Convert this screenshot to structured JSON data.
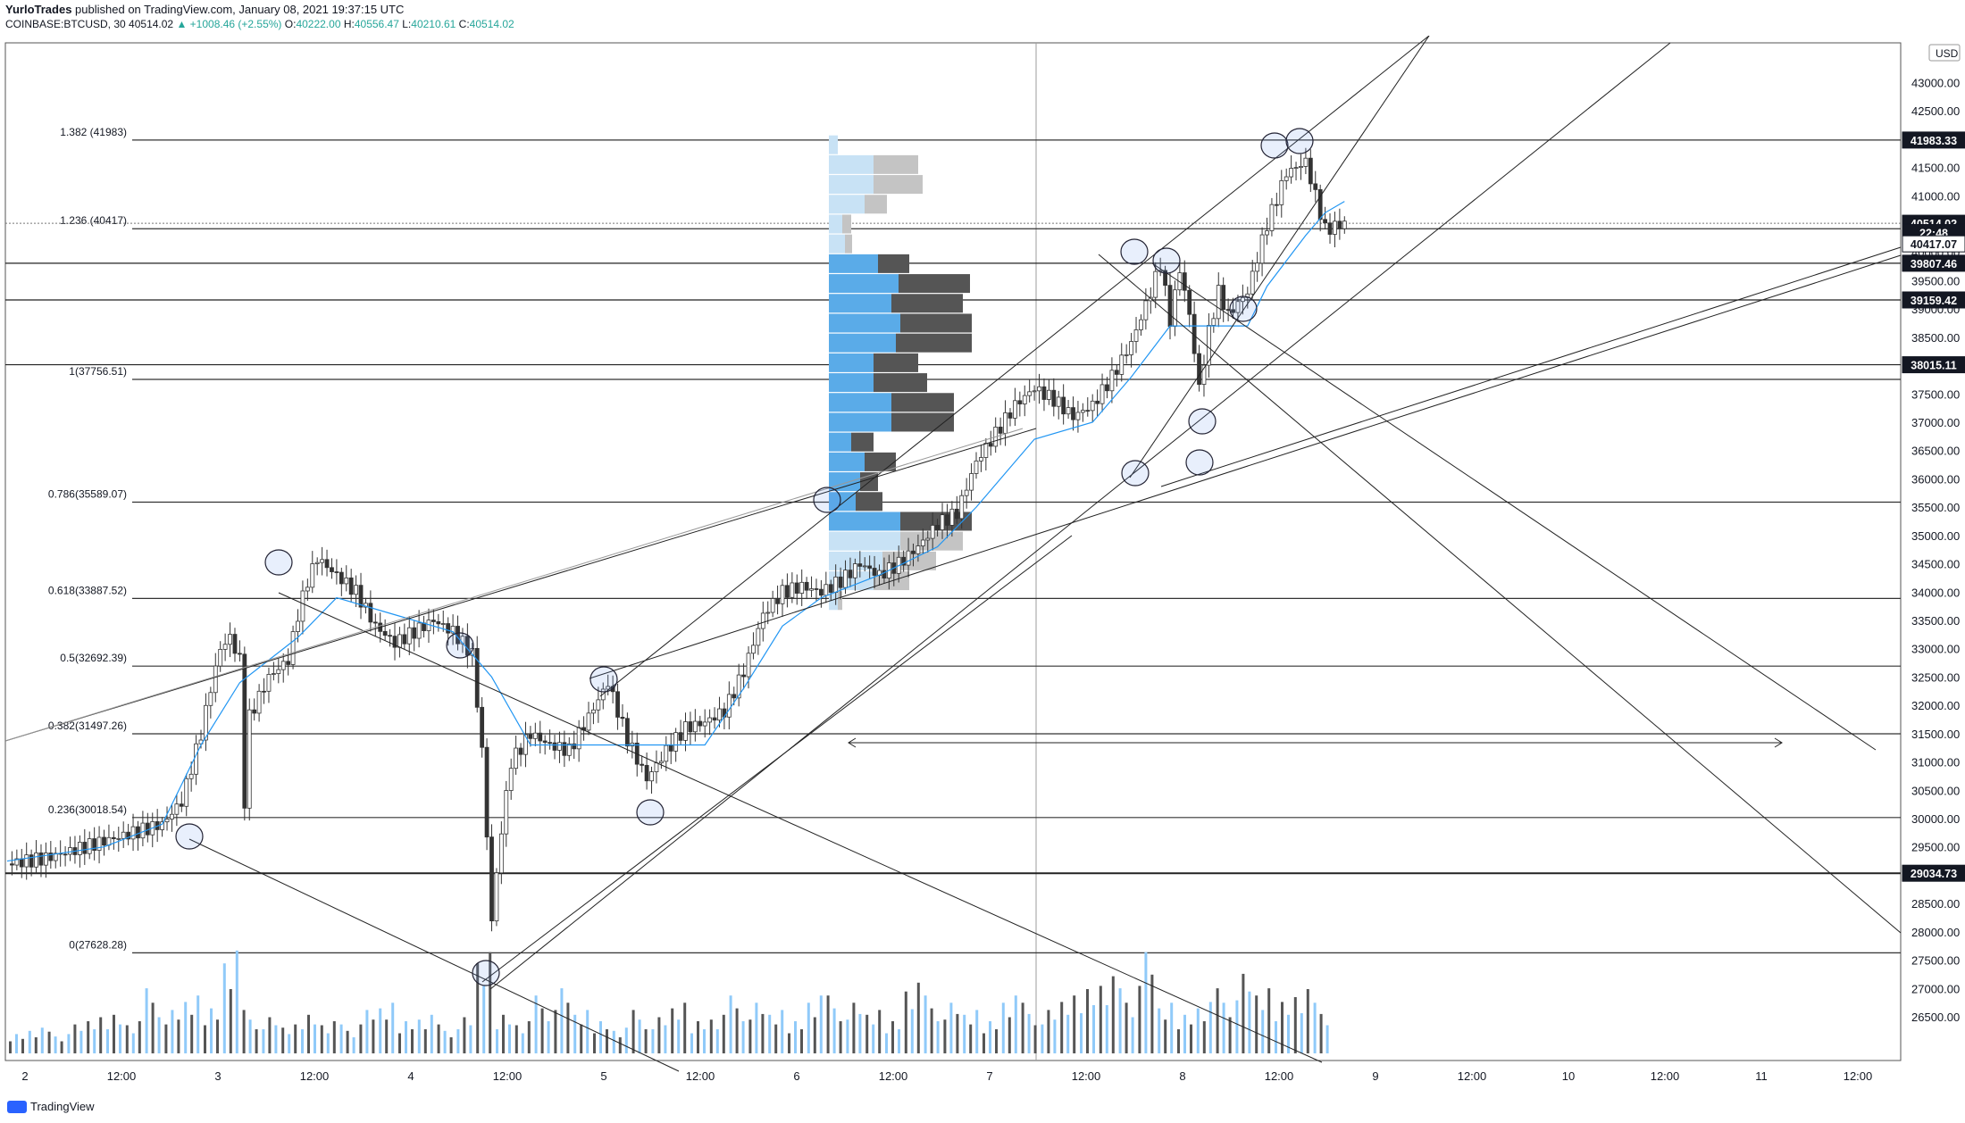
{
  "header": {
    "author": "YurloTrades",
    "published": "published on TradingView.com, January 08, 2021 19:37:15 UTC",
    "symbol": "COINBASE:BTCUSD, 30",
    "last": "40514.02",
    "change": "▲ +1008.46 (+2.55%)",
    "o_label": "O:",
    "o": "40222.00",
    "h_label": "H:",
    "h": "40556.47",
    "l_label": "L:",
    "l": "40210.61",
    "c_label": "C:",
    "c": "40514.02"
  },
  "brand": "TradingView",
  "currency": "USD",
  "colors": {
    "up": "#26a69a",
    "down": "#333333",
    "ma": "#2196f3",
    "vol_up": "#90caf9",
    "vol_down": "#555555",
    "vp_blue": "#5aabe8",
    "vp_blue_light": "#c8e2f5",
    "vp_dark": "#555555",
    "vp_grey": "#c4c4c4"
  },
  "chart_data": {
    "type": "candlestick",
    "title": "",
    "xlabel": "",
    "ylabel": "",
    "ylim": [
      26200,
      43700
    ],
    "x_ticks": [
      "2",
      "12:00",
      "3",
      "12:00",
      "4",
      "12:00",
      "5",
      "12:00",
      "6",
      "12:00",
      "7",
      "12:00",
      "8",
      "12:00",
      "9",
      "12:00",
      "10",
      "12:00",
      "11",
      "12:00"
    ],
    "y_ticks": [
      "43000.00",
      "42500.00",
      "42000.00",
      "41500.00",
      "41000.00",
      "40500.00",
      "40000.00",
      "39500.00",
      "39000.00",
      "38500.00",
      "38000.00",
      "37500.00",
      "37000.00",
      "36500.00",
      "36000.00",
      "35500.00",
      "35000.00",
      "34500.00",
      "34000.00",
      "33500.00",
      "33000.00",
      "32500.00",
      "32000.00",
      "31500.00",
      "31000.00",
      "30500.00",
      "30000.00",
      "29500.00",
      "29000.00",
      "28500.00",
      "28000.00",
      "27500.00",
      "27000.00",
      "26500.00"
    ],
    "price_tags": [
      {
        "label": "41983.33",
        "value": 41983.33,
        "style": "dark"
      },
      {
        "label": "40514.02",
        "value": 40514.02,
        "style": "dark"
      },
      {
        "label": "22:48",
        "value": 40350,
        "style": "dark"
      },
      {
        "label": "40417.07",
        "value": 40150,
        "style": "light"
      },
      {
        "label": "39807.46",
        "value": 39807.46,
        "style": "dark"
      },
      {
        "label": "39159.42",
        "value": 39159.42,
        "style": "dark"
      },
      {
        "label": "38015.11",
        "value": 38015.11,
        "style": "dark"
      },
      {
        "label": "29034.73",
        "value": 29034.73,
        "style": "dark"
      }
    ],
    "fib_levels": [
      {
        "label": "1.382 (41983)",
        "value": 41983
      },
      {
        "label": "1.236 (40417)",
        "value": 40417
      },
      {
        "label": "1(37756.51)",
        "value": 37756.51
      },
      {
        "label": "0.786(35589.07)",
        "value": 35589.07
      },
      {
        "label": "0.618(33887.52)",
        "value": 33887.52
      },
      {
        "label": "0.5(32692.39)",
        "value": 32692.39
      },
      {
        "label": "0.382(31497.26)",
        "value": 31497.26
      },
      {
        "label": "0.236(30018.54)",
        "value": 30018.54
      },
      {
        "label": "0(27628.28)",
        "value": 27628.28
      }
    ],
    "hlines": [
      39807.46,
      39159.42,
      38015.11,
      29034.73
    ],
    "price_path": [
      [
        0,
        29200
      ],
      [
        2,
        29300
      ],
      [
        4,
        29500
      ],
      [
        6,
        29700
      ],
      [
        8,
        29900
      ],
      [
        9,
        30300
      ],
      [
        10,
        31500
      ],
      [
        10.5,
        32300
      ],
      [
        11,
        33000
      ],
      [
        11.5,
        33200
      ],
      [
        12,
        32800
      ],
      [
        12.2,
        30000
      ],
      [
        12.5,
        31800
      ],
      [
        13.5,
        32500
      ],
      [
        14.5,
        32800
      ],
      [
        15,
        33600
      ],
      [
        15.5,
        34200
      ],
      [
        16,
        34600
      ],
      [
        17,
        34300
      ],
      [
        18,
        34000
      ],
      [
        19,
        33400
      ],
      [
        20,
        33100
      ],
      [
        21,
        33300
      ],
      [
        22,
        33500
      ],
      [
        23,
        33300
      ],
      [
        24,
        32900
      ],
      [
        24.5,
        31200
      ],
      [
        25,
        28200
      ],
      [
        25.5,
        29800
      ],
      [
        26,
        31000
      ],
      [
        27,
        31500
      ],
      [
        28,
        31300
      ],
      [
        29,
        31200
      ],
      [
        30,
        31800
      ],
      [
        31,
        32400
      ],
      [
        32,
        31400
      ],
      [
        33,
        30700
      ],
      [
        34,
        31200
      ],
      [
        35,
        31600
      ],
      [
        36,
        31700
      ],
      [
        37,
        31900
      ],
      [
        38,
        32600
      ],
      [
        39,
        33600
      ],
      [
        40,
        34000
      ],
      [
        41,
        34100
      ],
      [
        42,
        34000
      ],
      [
        43,
        34200
      ],
      [
        44,
        34500
      ],
      [
        45,
        34300
      ],
      [
        46,
        34500
      ],
      [
        47,
        34800
      ],
      [
        48,
        35200
      ],
      [
        49,
        35400
      ],
      [
        50,
        36300
      ],
      [
        51,
        36800
      ],
      [
        52,
        37300
      ],
      [
        53,
        37600
      ],
      [
        54,
        37400
      ],
      [
        55,
        37100
      ],
      [
        56,
        37300
      ],
      [
        57,
        37800
      ],
      [
        58,
        38400
      ],
      [
        59,
        39300
      ],
      [
        59.5,
        39800
      ],
      [
        60,
        38800
      ],
      [
        60.5,
        39700
      ],
      [
        61,
        38900
      ],
      [
        61.5,
        37600
      ],
      [
        62,
        38600
      ],
      [
        62.5,
        39300
      ],
      [
        63,
        38900
      ],
      [
        64,
        39300
      ],
      [
        65,
        40500
      ],
      [
        66,
        41400
      ],
      [
        67,
        41600
      ],
      [
        67.5,
        41000
      ],
      [
        68,
        40400
      ],
      [
        69,
        40514
      ]
    ],
    "ma_path": [
      [
        0,
        29250
      ],
      [
        5,
        29500
      ],
      [
        8,
        29900
      ],
      [
        10,
        31300
      ],
      [
        12,
        32400
      ],
      [
        15,
        33200
      ],
      [
        17,
        33900
      ],
      [
        20,
        33600
      ],
      [
        23,
        33300
      ],
      [
        25,
        32500
      ],
      [
        27,
        31300
      ],
      [
        30,
        31300
      ],
      [
        33,
        31300
      ],
      [
        36,
        31300
      ],
      [
        38,
        32300
      ],
      [
        40,
        33400
      ],
      [
        42,
        33900
      ],
      [
        45,
        34300
      ],
      [
        48,
        34800
      ],
      [
        50,
        35500
      ],
      [
        53,
        36700
      ],
      [
        56,
        37000
      ],
      [
        58,
        37800
      ],
      [
        60,
        38700
      ],
      [
        62,
        38700
      ],
      [
        64,
        38700
      ],
      [
        65,
        39400
      ],
      [
        67,
        40300
      ],
      [
        68,
        40700
      ],
      [
        69,
        40900
      ]
    ],
    "volume": [
      3,
      4,
      3,
      4,
      5,
      6,
      5,
      9,
      6,
      8,
      7,
      16,
      6,
      5,
      4,
      6,
      5,
      4,
      6,
      7,
      5,
      6,
      4,
      5,
      14,
      6,
      5,
      8,
      9,
      6,
      5,
      4,
      6,
      5,
      7,
      5,
      6,
      8,
      7,
      6,
      5,
      9,
      8,
      7,
      6,
      5,
      11,
      8,
      7,
      6,
      5,
      9,
      7,
      6,
      8,
      10,
      12,
      9,
      14,
      7,
      6,
      8,
      9,
      11,
      9,
      8,
      10,
      7
    ],
    "volume_profile": [
      {
        "price": 41900,
        "blue": 1,
        "grey": 0,
        "light": true
      },
      {
        "price": 41550,
        "blue": 5,
        "grey": 5,
        "light": true
      },
      {
        "price": 41200,
        "blue": 5,
        "grey": 5.5,
        "light": true
      },
      {
        "price": 40850,
        "blue": 4,
        "grey": 2.5,
        "light": true
      },
      {
        "price": 40500,
        "blue": 1.5,
        "grey": 1,
        "light": true
      },
      {
        "price": 40150,
        "blue": 1.8,
        "grey": 0.8,
        "light": true
      },
      {
        "price": 39800,
        "blue": 5.5,
        "grey": 3.5,
        "light": false
      },
      {
        "price": 39450,
        "blue": 7.8,
        "grey": 8,
        "light": false
      },
      {
        "price": 39100,
        "blue": 7,
        "grey": 8,
        "light": false
      },
      {
        "price": 38750,
        "blue": 8,
        "grey": 8,
        "light": false
      },
      {
        "price": 38400,
        "blue": 7.5,
        "grey": 8.5,
        "light": false
      },
      {
        "price": 38050,
        "blue": 5,
        "grey": 5,
        "light": false
      },
      {
        "price": 37700,
        "blue": 5,
        "grey": 6,
        "light": false
      },
      {
        "price": 37350,
        "blue": 7,
        "grey": 7,
        "light": false
      },
      {
        "price": 37000,
        "blue": 7,
        "grey": 7,
        "light": false
      },
      {
        "price": 36650,
        "blue": 2.5,
        "grey": 2.5,
        "light": false
      },
      {
        "price": 36300,
        "blue": 4,
        "grey": 3.5,
        "light": false
      },
      {
        "price": 35950,
        "blue": 3.5,
        "grey": 2,
        "light": false
      },
      {
        "price": 35600,
        "blue": 3,
        "grey": 3,
        "light": false
      },
      {
        "price": 35250,
        "blue": 8,
        "grey": 8,
        "light": false
      },
      {
        "price": 34900,
        "blue": 8,
        "grey": 7,
        "light": true
      },
      {
        "price": 34550,
        "blue": 6,
        "grey": 6,
        "light": true
      },
      {
        "price": 34200,
        "blue": 5,
        "grey": 4,
        "light": true
      },
      {
        "price": 33850,
        "blue": 1,
        "grey": 0.5,
        "light": true
      }
    ]
  }
}
